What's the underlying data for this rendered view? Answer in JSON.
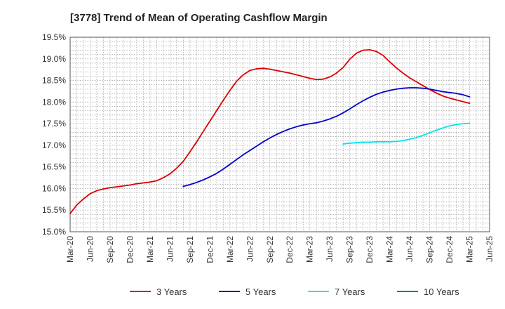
{
  "chart_data": {
    "type": "line",
    "title": "[3778]  Trend of Mean of Operating Cashflow Margin",
    "xlabel": "",
    "ylabel": "",
    "x_ticks": [
      "Mar-20",
      "Jun-20",
      "Sep-20",
      "Dec-20",
      "Mar-21",
      "Jun-21",
      "Sep-21",
      "Dec-21",
      "Mar-22",
      "Jun-22",
      "Sep-22",
      "Dec-22",
      "Mar-23",
      "Jun-23",
      "Sep-23",
      "Dec-23",
      "Mar-24",
      "Jun-24",
      "Sep-24",
      "Dec-24",
      "Mar-25",
      "Jun-25"
    ],
    "y_ticks": [
      "15.0%",
      "15.5%",
      "16.0%",
      "16.5%",
      "17.0%",
      "17.5%",
      "18.0%",
      "18.5%",
      "19.0%",
      "19.5%"
    ],
    "ylim": [
      15.0,
      19.5
    ],
    "grid": true,
    "legend_position": "bottom",
    "series": [
      {
        "name": "3 Years",
        "color": "#dd0000",
        "x": [
          "Mar-20",
          "Apr-20",
          "May-20",
          "Jun-20",
          "Jul-20",
          "Aug-20",
          "Sep-20",
          "Oct-20",
          "Nov-20",
          "Dec-20",
          "Jan-21",
          "Feb-21",
          "Mar-21",
          "Apr-21",
          "May-21",
          "Jun-21",
          "Jul-21",
          "Aug-21",
          "Sep-21",
          "Oct-21",
          "Nov-21",
          "Dec-21",
          "Jan-22",
          "Feb-22",
          "Mar-22",
          "Apr-22",
          "May-22",
          "Jun-22",
          "Jul-22",
          "Aug-22",
          "Sep-22",
          "Oct-22",
          "Nov-22",
          "Dec-22",
          "Jan-23",
          "Feb-23",
          "Mar-23",
          "Apr-23",
          "May-23",
          "Jun-23",
          "Jul-23",
          "Aug-23",
          "Sep-23",
          "Oct-23",
          "Nov-23",
          "Dec-23",
          "Jan-24",
          "Feb-24",
          "Mar-24",
          "Apr-24",
          "May-24",
          "Jun-24",
          "Jul-24",
          "Aug-24",
          "Sep-24",
          "Oct-24",
          "Nov-24",
          "Dec-24",
          "Jan-25",
          "Feb-25",
          "Mar-25"
        ],
        "values": [
          15.42,
          15.62,
          15.76,
          15.88,
          15.95,
          15.99,
          16.02,
          16.04,
          16.06,
          16.08,
          16.11,
          16.13,
          16.15,
          16.18,
          16.25,
          16.34,
          16.47,
          16.63,
          16.85,
          17.08,
          17.32,
          17.56,
          17.8,
          18.04,
          18.27,
          18.48,
          18.63,
          18.73,
          18.77,
          18.78,
          18.76,
          18.73,
          18.7,
          18.67,
          18.63,
          18.59,
          18.55,
          18.52,
          18.53,
          18.58,
          18.67,
          18.8,
          18.99,
          19.13,
          19.2,
          19.21,
          19.17,
          19.08,
          18.93,
          18.79,
          18.67,
          18.56,
          18.47,
          18.38,
          18.29,
          18.21,
          18.14,
          18.09,
          18.05,
          18.01,
          17.97
        ]
      },
      {
        "name": "5 Years",
        "color": "#0000cc",
        "x": [
          "Aug-21",
          "Sep-21",
          "Oct-21",
          "Nov-21",
          "Dec-21",
          "Jan-22",
          "Feb-22",
          "Mar-22",
          "Apr-22",
          "May-22",
          "Jun-22",
          "Jul-22",
          "Aug-22",
          "Sep-22",
          "Oct-22",
          "Nov-22",
          "Dec-22",
          "Jan-23",
          "Feb-23",
          "Mar-23",
          "Apr-23",
          "May-23",
          "Jun-23",
          "Jul-23",
          "Aug-23",
          "Sep-23",
          "Oct-23",
          "Nov-23",
          "Dec-23",
          "Jan-24",
          "Feb-24",
          "Mar-24",
          "Apr-24",
          "May-24",
          "Jun-24",
          "Jul-24",
          "Aug-24",
          "Sep-24",
          "Oct-24",
          "Nov-24",
          "Dec-24",
          "Jan-25",
          "Feb-25",
          "Mar-25"
        ],
        "values": [
          16.05,
          16.09,
          16.14,
          16.2,
          16.27,
          16.35,
          16.45,
          16.56,
          16.67,
          16.78,
          16.88,
          16.98,
          17.08,
          17.17,
          17.25,
          17.32,
          17.38,
          17.43,
          17.47,
          17.5,
          17.52,
          17.56,
          17.61,
          17.67,
          17.75,
          17.84,
          17.94,
          18.03,
          18.11,
          18.18,
          18.23,
          18.27,
          18.3,
          18.32,
          18.33,
          18.33,
          18.32,
          18.3,
          18.27,
          18.24,
          18.22,
          18.2,
          18.17,
          18.12
        ]
      },
      {
        "name": "7 Years",
        "color": "#00e5ee",
        "x": [
          "Aug-23",
          "Sep-23",
          "Oct-23",
          "Nov-23",
          "Dec-23",
          "Jan-24",
          "Feb-24",
          "Mar-24",
          "Apr-24",
          "May-24",
          "Jun-24",
          "Jul-24",
          "Aug-24",
          "Sep-24",
          "Oct-24",
          "Nov-24",
          "Dec-24",
          "Jan-25",
          "Feb-25",
          "Mar-25"
        ],
        "values": [
          17.03,
          17.05,
          17.06,
          17.07,
          17.07,
          17.08,
          17.08,
          17.08,
          17.09,
          17.11,
          17.14,
          17.18,
          17.23,
          17.29,
          17.35,
          17.4,
          17.45,
          17.48,
          17.5,
          17.51
        ]
      },
      {
        "name": "10 Years",
        "color": "#228b22",
        "x": [],
        "values": []
      }
    ]
  }
}
